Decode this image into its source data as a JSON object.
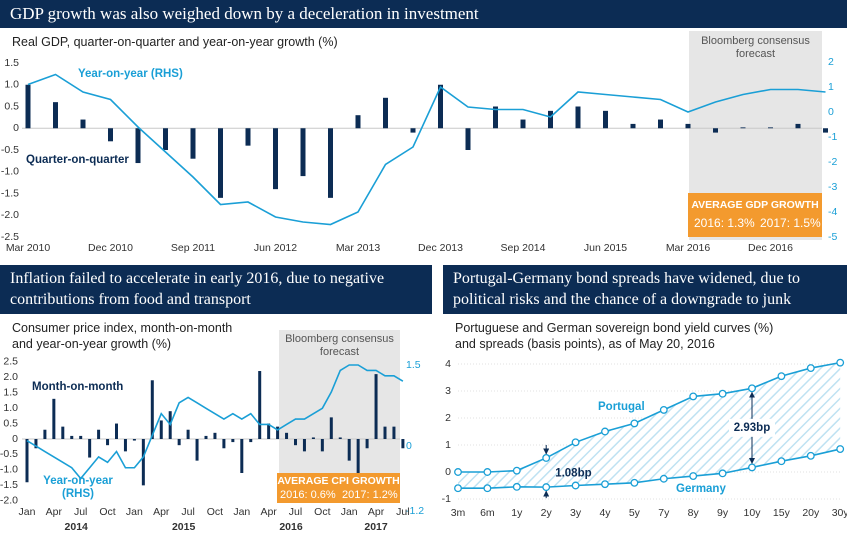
{
  "chart_data": [
    {
      "type": "combo",
      "title": "GDP growth was also weighed down by a deceleration in investment",
      "subtitle": "Real GDP, quarter-on-quarter and year-on-year growth (%)",
      "forecast_label": "Bloomberg consensus forecast",
      "annotation_title": "AVERAGE GDP GROWTH",
      "annotation_lines": [
        "2016: 1.3%",
        "2017: 1.5%"
      ],
      "categories": [
        "Mar 2010",
        null,
        null,
        "Dec 2010",
        null,
        null,
        "Sep 2011",
        null,
        null,
        "Jun 2012",
        null,
        null,
        "Mar 2013",
        null,
        null,
        "Dec 2013",
        null,
        null,
        "Sep 2014",
        null,
        null,
        "Jun 2015",
        null,
        null,
        "Mar 2016",
        null,
        null,
        "Dec 2016",
        null,
        null
      ],
      "series": [
        {
          "name": "Quarter-on-quarter",
          "type": "bar",
          "color": "#0c2c54",
          "values": [
            1.0,
            0.6,
            0.2,
            -0.3,
            -0.8,
            -0.5,
            -0.7,
            -1.6,
            -0.4,
            -1.4,
            -1.1,
            -1.6,
            0.3,
            0.7,
            -0.1,
            1.0,
            -0.5,
            0.5,
            0.2,
            0.4,
            0.5,
            0.4,
            0.1,
            0.2,
            0.1,
            -0.1,
            0.02,
            0.02,
            0.1,
            -0.1
          ]
        },
        {
          "name": "Year-on-year (RHS)",
          "type": "line",
          "axis": "y2",
          "color": "#1a9fd6",
          "values": [
            1.1,
            1.5,
            0.8,
            0.5,
            -0.6,
            -1.6,
            -2.6,
            -3.7,
            -3.6,
            -4.2,
            -4.4,
            -4.5,
            -4.0,
            -2.1,
            -1.4,
            1.0,
            0.2,
            0.1,
            0.1,
            -0.2,
            0.8,
            0.7,
            0.6,
            0.5,
            0.0,
            0.4,
            0.7,
            0.9,
            0.9,
            0.8
          ]
        }
      ],
      "ylim": [
        -2.5,
        1.5
      ],
      "yticks": [
        1.5,
        {
          "value": 1,
          "label": "1.0"
        },
        0.5,
        0,
        -0.5,
        {
          "value": -1,
          "label": "-1.0"
        },
        -1.5,
        {
          "value": -2,
          "label": "-2.0"
        },
        -2.5
      ],
      "y2lim": [
        -5,
        2
      ],
      "y2ticks": [
        2,
        1,
        0,
        -1,
        -2,
        -3,
        -4,
        -5
      ]
    },
    {
      "type": "combo",
      "title": "Inflation failed to accelerate in early 2016, due to negative contributions from food and transport",
      "subtitle": "Consumer price index, month-on-month and year-on-year growth (%)",
      "forecast_label": "Bloomberg consensus forecast",
      "annotation_title": "AVERAGE CPI GROWTH",
      "annotation_lines": [
        "2016: 0.6%",
        "2017: 1.2%"
      ],
      "categories": [
        "Jan",
        null,
        null,
        "Apr",
        null,
        null,
        "Jul",
        null,
        null,
        "Oct",
        null,
        null,
        "Jan",
        null,
        null,
        "Apr",
        null,
        null,
        "Jul",
        null,
        null,
        "Oct",
        null,
        null,
        "Jan",
        null,
        null,
        "Apr",
        null,
        null,
        "Jul",
        null,
        null,
        "Oct",
        null,
        null,
        "Jan",
        null,
        null,
        "Apr",
        null,
        null,
        "Jul"
      ],
      "year_labels": [
        "2014",
        "2015",
        "2016",
        "2017"
      ],
      "series": [
        {
          "name": "Month-on-month",
          "type": "bar",
          "color": "#0c2c54",
          "values": [
            -1.4,
            -0.3,
            0.3,
            1.3,
            0.4,
            0.1,
            0.1,
            -0.6,
            0.3,
            -0.2,
            0.5,
            -0.4,
            -0.05,
            -1.5,
            1.9,
            0.6,
            0.9,
            -0.2,
            0.3,
            -0.7,
            0.1,
            0.2,
            -0.3,
            -0.1,
            -1.1,
            -0.1,
            2.2,
            0.5,
            0.4,
            0.2,
            -0.2,
            -0.4,
            0.05,
            -0.4,
            0.7,
            0.05,
            -0.7,
            -1.2,
            -0.3,
            2.1,
            0.4,
            0.4,
            -0.3
          ]
        },
        {
          "name": "Year-on-year (RHS)",
          "type": "line",
          "axis": "y2",
          "color": "#1a9fd6",
          "values": [
            0.1,
            0.0,
            -0.1,
            -0.2,
            -0.3,
            -0.4,
            -0.6,
            -0.4,
            -0.2,
            -0.3,
            -0.1,
            -0.4,
            -0.4,
            -0.2,
            0.2,
            0.6,
            0.4,
            0.8,
            0.9,
            0.8,
            0.7,
            0.6,
            0.5,
            0.6,
            0.5,
            0.6,
            0.4,
            0.4,
            0.3,
            0.4,
            0.5,
            0.5,
            0.6,
            0.7,
            1.0,
            1.4,
            1.5,
            1.5,
            1.4,
            1.4,
            1.3,
            1.3,
            1.2
          ]
        }
      ],
      "ylim": [
        -2,
        2.5
      ],
      "yticks": [
        2.5,
        {
          "value": 2,
          "label": "2.0"
        },
        1.5,
        {
          "value": 1,
          "label": "1.0"
        },
        0.5,
        0,
        -0.5,
        {
          "value": -1,
          "label": "-1.0"
        },
        -1.5,
        {
          "value": -2,
          "label": "-2.0"
        }
      ],
      "y2lim": [
        -1.2,
        1.5
      ],
      "y2ticks": [
        1.5,
        0,
        -1.2
      ]
    },
    {
      "type": "line",
      "title": "Portugal-Germany bond spreads have widened, due to political risks and the chance of a downgrade to junk",
      "subtitle": "Portuguese and German sovereign bond yield curves (%) and spreads (basis points), as of May 20, 2016",
      "annotations": [
        "1.08bp",
        "2.93bp"
      ],
      "categories": [
        "3m",
        "6m",
        "1y",
        "2y",
        "3y",
        "4y",
        "5y",
        "7y",
        "8y",
        "9y",
        "10y",
        "15y",
        "20y",
        "30y"
      ],
      "series": [
        {
          "name": "Portugal",
          "color": "#1a9fd6",
          "values": [
            0.0,
            0.0,
            0.05,
            0.52,
            1.1,
            1.5,
            1.8,
            2.3,
            2.8,
            2.9,
            3.1,
            3.55,
            3.85,
            4.05
          ]
        },
        {
          "name": "Germany",
          "color": "#1a9fd6",
          "values": [
            -0.6,
            -0.6,
            -0.55,
            -0.56,
            -0.5,
            -0.45,
            -0.4,
            -0.25,
            -0.15,
            -0.05,
            0.17,
            0.4,
            0.6,
            0.85
          ]
        }
      ],
      "ylim": [
        -1,
        4
      ],
      "yticks": [
        4,
        3,
        2,
        1,
        0,
        -1
      ],
      "grid": true
    }
  ]
}
